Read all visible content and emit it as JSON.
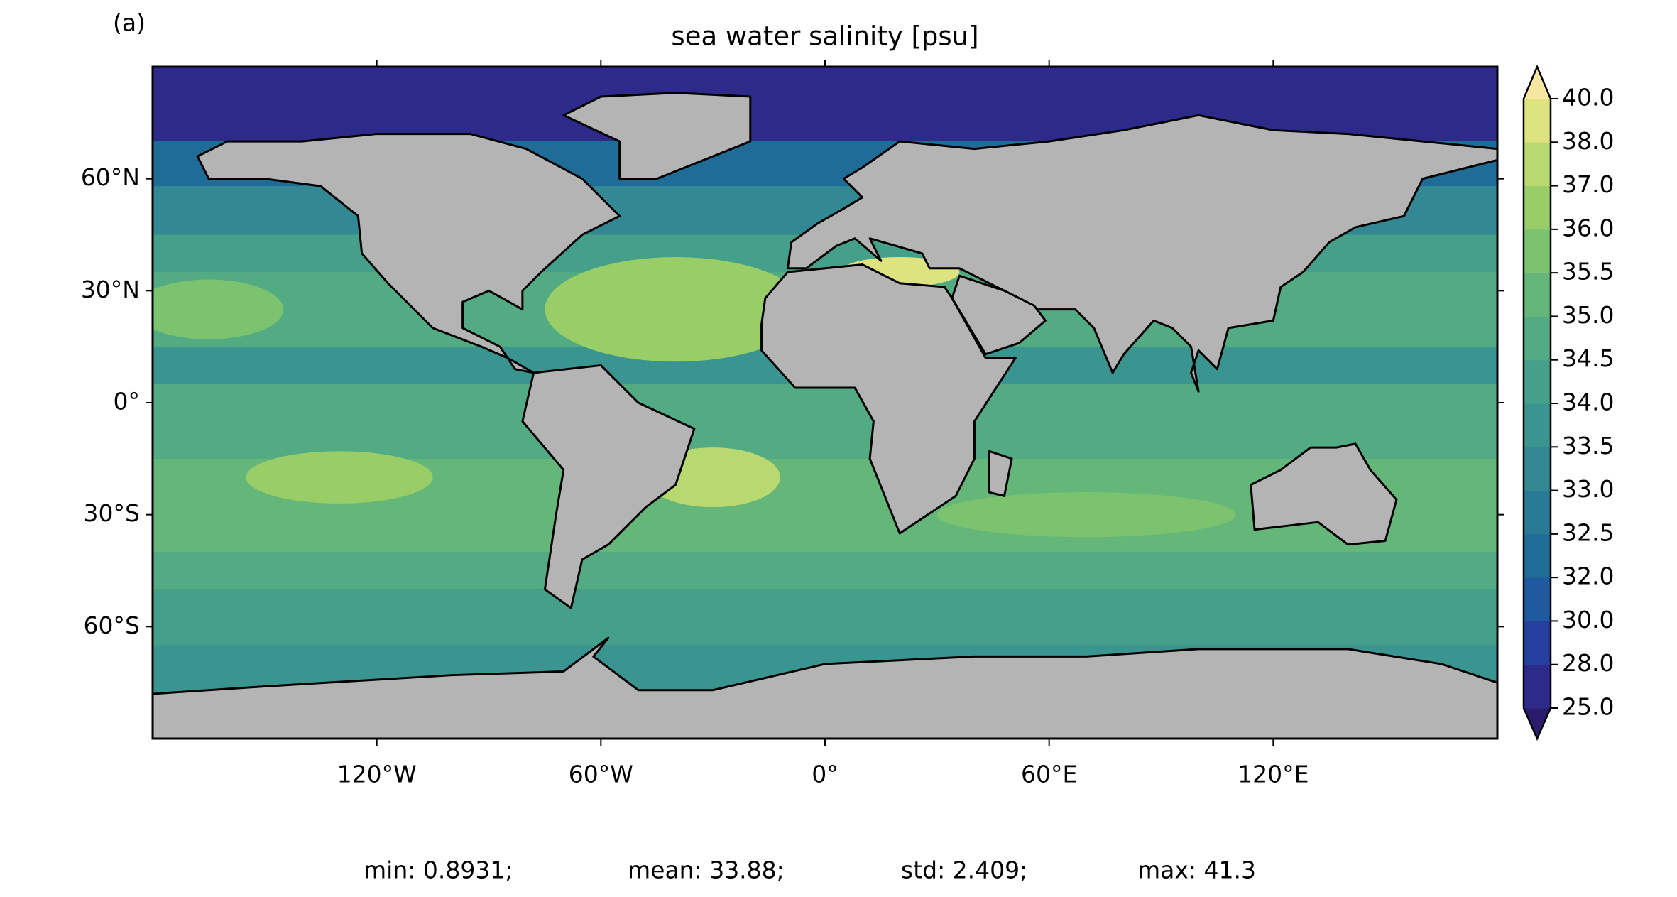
{
  "panel_label": "(a)",
  "chart_data": {
    "type": "map",
    "title": "sea water salinity [psu]",
    "xlim": [
      -180,
      180
    ],
    "ylim": [
      -90,
      90
    ],
    "xticks": [
      {
        "value": -120,
        "label": "120°W"
      },
      {
        "value": -60,
        "label": "60°W"
      },
      {
        "value": 0,
        "label": "0°"
      },
      {
        "value": 60,
        "label": "60°E"
      },
      {
        "value": 120,
        "label": "120°E"
      }
    ],
    "yticks": [
      {
        "value": 60,
        "label": "60°N"
      },
      {
        "value": 30,
        "label": "30°N"
      },
      {
        "value": 0,
        "label": "0°"
      },
      {
        "value": -30,
        "label": "30°S"
      },
      {
        "value": -60,
        "label": "60°S"
      }
    ],
    "colorbar": {
      "ticks": [
        {
          "value": 25,
          "label": "25.0"
        },
        {
          "value": 28,
          "label": "28.0"
        },
        {
          "value": 30,
          "label": "30.0"
        },
        {
          "value": 32,
          "label": "32.0"
        },
        {
          "value": 32.5,
          "label": "32.5"
        },
        {
          "value": 33,
          "label": "33.0"
        },
        {
          "value": 33.5,
          "label": "33.5"
        },
        {
          "value": 34,
          "label": "34.0"
        },
        {
          "value": 34.5,
          "label": "34.5"
        },
        {
          "value": 35,
          "label": "35.0"
        },
        {
          "value": 35.5,
          "label": "35.5"
        },
        {
          "value": 36,
          "label": "36.0"
        },
        {
          "value": 37,
          "label": "37.0"
        },
        {
          "value": 38,
          "label": "38.0"
        },
        {
          "value": 40,
          "label": "40.0"
        }
      ],
      "colors": [
        "#2a1b6b",
        "#2d2a8a",
        "#243f9e",
        "#1f5a9f",
        "#1f6c97",
        "#297a95",
        "#328893",
        "#3a9490",
        "#45a08a",
        "#52ab82",
        "#64b779",
        "#7cc36f",
        "#99cd68",
        "#b8d870",
        "#dde37e",
        "#f6e6a0"
      ]
    },
    "stats": [
      "min: 0.8931;",
      "mean: 33.88;",
      "std: 2.409;",
      "max: 41.3"
    ]
  }
}
